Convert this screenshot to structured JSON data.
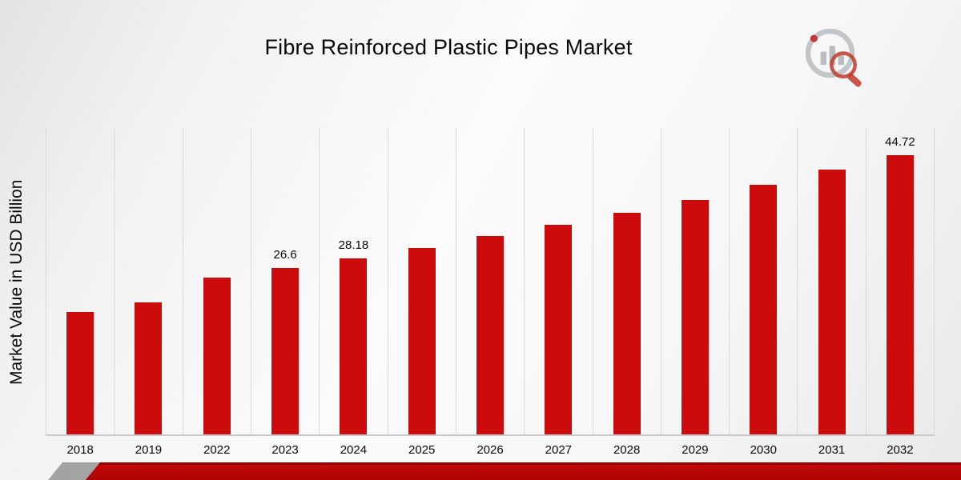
{
  "header": {
    "title": "Fibre Reinforced Plastic Pipes Market"
  },
  "brand": {
    "logo_icon": "market-research-chart-magnifier-logo"
  },
  "chart_data": {
    "type": "bar",
    "title": "Fibre Reinforced Plastic Pipes Market",
    "xlabel": "",
    "ylabel": "Market Value in USD Billion",
    "categories": [
      "2018",
      "2019",
      "2022",
      "2023",
      "2024",
      "2025",
      "2026",
      "2027",
      "2028",
      "2029",
      "2030",
      "2031",
      "2032"
    ],
    "values": [
      19.6,
      21.1,
      25.1,
      26.6,
      28.18,
      29.8,
      31.7,
      33.5,
      35.5,
      37.5,
      39.9,
      42.4,
      44.72
    ],
    "bar_labels": [
      "",
      "",
      "",
      "26.6",
      "28.18",
      "",
      "",
      "",
      "",
      "",
      "",
      "",
      "44.72"
    ],
    "bar_color": "#cc0c0c",
    "ylim": [
      0,
      49.3
    ],
    "grid": "vertical-only",
    "legend": "none"
  }
}
